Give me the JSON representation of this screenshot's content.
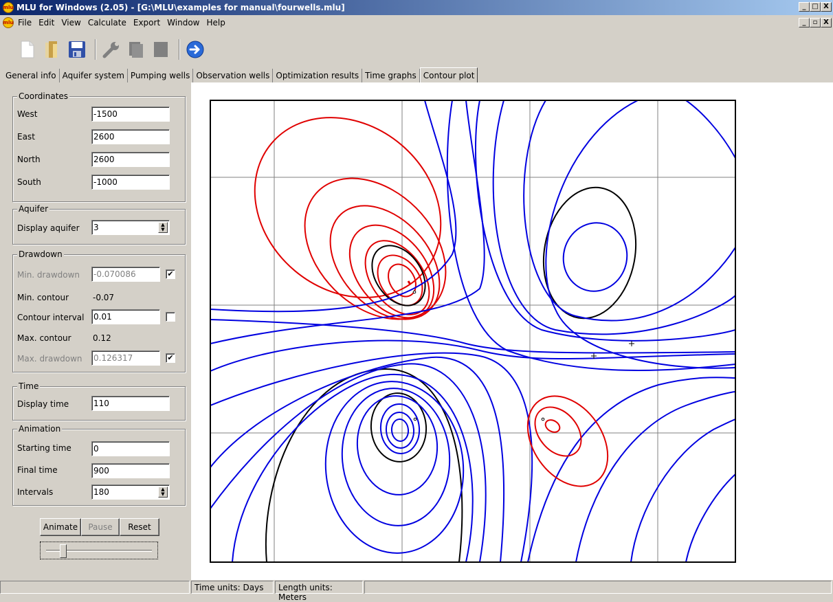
{
  "window": {
    "title": "MLU for Windows (2.05) - [G:\\MLU\\examples for manual\\fourwells.mlu]",
    "logo_text": "mlu",
    "buttons": [
      "_",
      "□",
      "X"
    ],
    "mdi_buttons": [
      "_",
      "▫",
      "X"
    ]
  },
  "menu": {
    "items": [
      "File",
      "Edit",
      "View",
      "Calculate",
      "Export",
      "Window",
      "Help"
    ]
  },
  "toolbar": {
    "icons": [
      "new-file-icon",
      "open-folder-icon",
      "save-icon",
      "wrench-icon",
      "copy-icon",
      "paste-icon",
      "run-arrow-icon"
    ]
  },
  "tabs": [
    "General info",
    "Aquifer system",
    "Pumping wells",
    "Observation wells",
    "Optimization results",
    "Time graphs",
    "Contour plot"
  ],
  "active_tab": "Contour plot",
  "coordinates": {
    "title": "Coordinates",
    "west_label": "West",
    "west_value": "-1500",
    "east_label": "East",
    "east_value": "2600",
    "north_label": "North",
    "north_value": "2600",
    "south_label": "South",
    "south_value": "-1000"
  },
  "aquifer": {
    "title": "Aquifer",
    "display_label": "Display aquifer",
    "display_value": "3"
  },
  "drawdown": {
    "title": "Drawdown",
    "min_drawdown_label": "Min. drawdown",
    "min_drawdown_value": "-0.070086",
    "min_drawdown_checked": "✔",
    "min_contour_label": "Min. contour",
    "min_contour_value": "-0.07",
    "contour_interval_label": "Contour interval",
    "contour_interval_value": "0.01",
    "max_contour_label": "Max. contour",
    "max_contour_value": "0.12",
    "max_drawdown_label": "Max. drawdown",
    "max_drawdown_value": "0.126317",
    "max_drawdown_checked": "✔"
  },
  "time": {
    "title": "Time",
    "display_label": "Display time",
    "display_value": "110"
  },
  "animation": {
    "title": "Animation",
    "start_label": "Starting time",
    "start_value": "0",
    "final_label": "Final time",
    "final_value": "900",
    "intervals_label": "Intervals",
    "intervals_value": "180",
    "animate_label": "Animate",
    "pause_label": "Pause",
    "reset_label": "Reset"
  },
  "status": {
    "time_units": "Time units: Days",
    "length_units": "Length units: Meters"
  },
  "contour_colors": {
    "negative": "#e00000",
    "positive": "#0000e0",
    "highlight": "#000000",
    "grid": "#808080"
  }
}
